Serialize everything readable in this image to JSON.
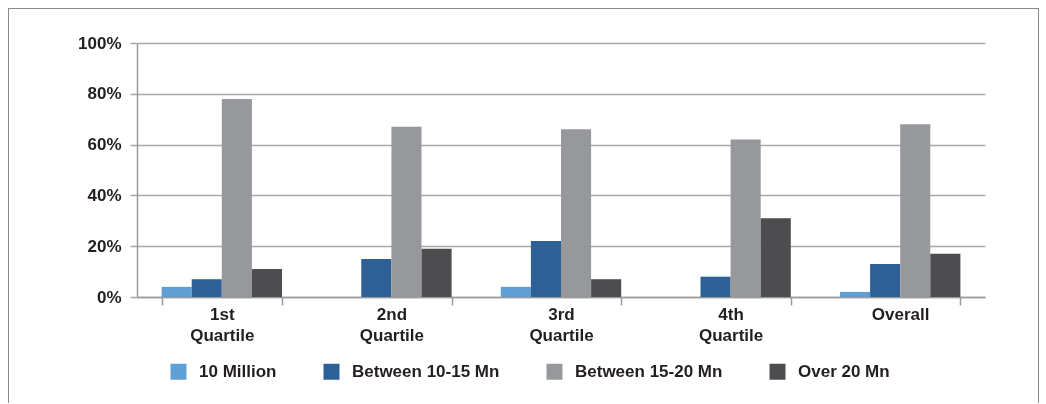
{
  "chart_data": {
    "type": "bar",
    "categories": [
      "1st Quartile",
      "2nd Quartile",
      "3rd Quartile",
      "4th Quartile",
      "Overall"
    ],
    "series": [
      {
        "name": "10 Million",
        "color": "#5f9fd6",
        "values": [
          4,
          null,
          4,
          null,
          2
        ]
      },
      {
        "name": "Between 10-15 Mn",
        "color": "#2c6096",
        "values": [
          7,
          15,
          22,
          8,
          13
        ]
      },
      {
        "name": "Between 15-20 Mn",
        "color": "#97989c",
        "values": [
          78,
          67,
          66,
          62,
          68
        ]
      },
      {
        "name": "Over 20 Mn",
        "color": "#4d4d4f",
        "values": [
          11,
          19,
          7,
          31,
          17
        ]
      }
    ],
    "ylim": [
      0,
      100
    ],
    "yticks": [
      {
        "value": 0,
        "label": "0%"
      },
      {
        "value": 20,
        "label": "20%"
      },
      {
        "value": 40,
        "label": "40%"
      },
      {
        "value": 60,
        "label": "60%"
      },
      {
        "value": 80,
        "label": "80%"
      },
      {
        "value": 100,
        "label": "100%"
      }
    ],
    "grid": "y",
    "legend": "bottom"
  }
}
